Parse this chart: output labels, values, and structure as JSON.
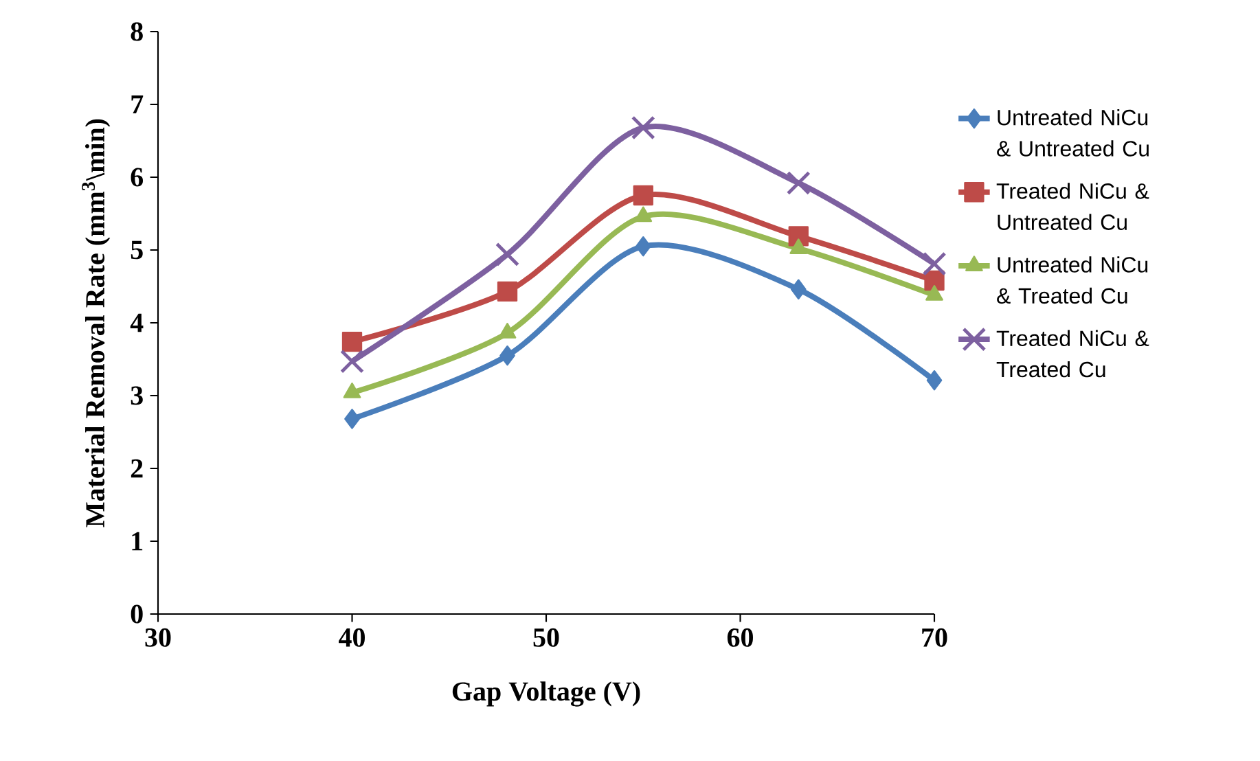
{
  "chart_data": {
    "type": "line",
    "xlabel": "Gap Voltage (V)",
    "ylabel": "Material Removal Rate (mm$^{3}$\\min)",
    "x": [
      40,
      48,
      55,
      63,
      70
    ],
    "series": [
      {
        "name": "Untreated NiCu & Untreated Cu",
        "color": "#4a7ebb",
        "marker": "diamond",
        "values": [
          2.68,
          3.55,
          5.05,
          4.46,
          3.21
        ]
      },
      {
        "name": "Treated NiCu & Untreated Cu",
        "color": "#be4b48",
        "marker": "square",
        "values": [
          3.74,
          4.43,
          5.75,
          5.19,
          4.58
        ]
      },
      {
        "name": "Untreated NiCu & Treated Cu",
        "color": "#98b954",
        "marker": "triangle",
        "values": [
          3.04,
          3.86,
          5.46,
          5.02,
          4.38
        ]
      },
      {
        "name": "Treated NiCu & Treated Cu",
        "color": "#7d60a0",
        "marker": "cross",
        "values": [
          3.47,
          4.94,
          6.68,
          5.92,
          4.81
        ]
      }
    ],
    "xlim": [
      30,
      70
    ],
    "xticks": [
      30,
      40,
      50,
      60,
      70
    ],
    "ylim": [
      0,
      8
    ],
    "yticks": [
      0,
      1,
      2,
      3,
      4,
      5,
      6,
      7,
      8
    ],
    "grid": false,
    "legend": "right",
    "line_style": "solid"
  }
}
